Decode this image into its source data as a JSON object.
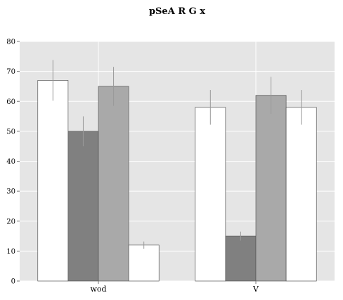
{
  "chart_data": {
    "type": "bar",
    "title": "pSeA R G  x",
    "xlabel": "",
    "ylabel": "",
    "ylim": [
      0,
      80
    ],
    "yticks": [
      0,
      10,
      20,
      30,
      40,
      50,
      60,
      70,
      80
    ],
    "categories": [
      "wod",
      "V"
    ],
    "grid": true,
    "legend": "none",
    "plot_background": "#e5e5e5",
    "series": [
      {
        "color": "#ffffff",
        "values": [
          67,
          58
        ],
        "errors": [
          6.8,
          5.8
        ]
      },
      {
        "color": "#808080",
        "values": [
          50,
          15
        ],
        "errors": [
          5.0,
          1.5
        ]
      },
      {
        "color": "#a9a9a9",
        "values": [
          65,
          62
        ],
        "errors": [
          6.5,
          6.2
        ]
      },
      {
        "color": "#ffffff",
        "values": [
          12,
          58
        ],
        "errors": [
          1.2,
          5.8
        ]
      }
    ]
  }
}
